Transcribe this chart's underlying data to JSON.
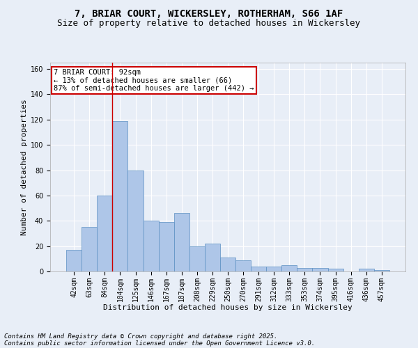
{
  "title_line1": "7, BRIAR COURT, WICKERSLEY, ROTHERHAM, S66 1AF",
  "title_line2": "Size of property relative to detached houses in Wickersley",
  "xlabel": "Distribution of detached houses by size in Wickersley",
  "ylabel": "Number of detached properties",
  "categories": [
    "42sqm",
    "63sqm",
    "84sqm",
    "104sqm",
    "125sqm",
    "146sqm",
    "167sqm",
    "187sqm",
    "208sqm",
    "229sqm",
    "250sqm",
    "270sqm",
    "291sqm",
    "312sqm",
    "333sqm",
    "353sqm",
    "374sqm",
    "395sqm",
    "416sqm",
    "436sqm",
    "457sqm"
  ],
  "values": [
    17,
    35,
    60,
    119,
    80,
    40,
    39,
    46,
    20,
    22,
    11,
    9,
    4,
    4,
    5,
    3,
    3,
    2,
    0,
    2,
    1
  ],
  "bar_color": "#aec6e8",
  "bar_edge_color": "#5a8fc2",
  "background_color": "#e8eef7",
  "fig_background_color": "#e8eef7",
  "grid_color": "#ffffff",
  "annotation_box_text": "7 BRIAR COURT: 92sqm\n← 13% of detached houses are smaller (66)\n87% of semi-detached houses are larger (442) →",
  "annotation_box_color": "#cc0000",
  "property_line_x": 2.5,
  "ylim": [
    0,
    165
  ],
  "yticks": [
    0,
    20,
    40,
    60,
    80,
    100,
    120,
    140,
    160
  ],
  "footnote_line1": "Contains HM Land Registry data © Crown copyright and database right 2025.",
  "footnote_line2": "Contains public sector information licensed under the Open Government Licence v3.0.",
  "title_fontsize": 10,
  "subtitle_fontsize": 9,
  "axis_label_fontsize": 8,
  "tick_fontsize": 7,
  "annotation_fontsize": 7.5,
  "footnote_fontsize": 6.5
}
